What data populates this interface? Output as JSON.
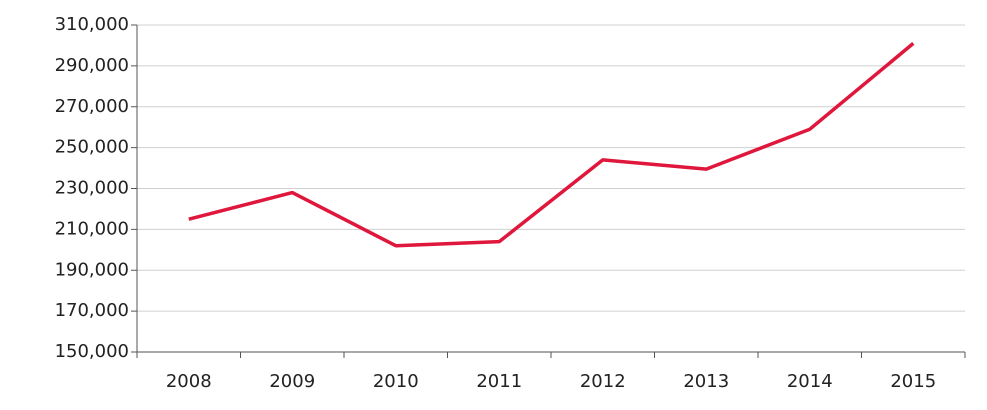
{
  "chart_data": {
    "type": "line",
    "categories": [
      "2008",
      "2009",
      "2010",
      "2011",
      "2012",
      "2013",
      "2014",
      "2015"
    ],
    "series": [
      {
        "color": "#e0173c",
        "values": [
          215000,
          228000,
          202000,
          204000,
          244000,
          239500,
          259000,
          301000
        ]
      }
    ],
    "ylim": [
      150000,
      310000
    ],
    "yticks": [
      {
        "value": 150000,
        "label": "150,000"
      },
      {
        "value": 170000,
        "label": "170,000"
      },
      {
        "value": 190000,
        "label": "190,000"
      },
      {
        "value": 210000,
        "label": "210,000"
      },
      {
        "value": 230000,
        "label": "230,000"
      },
      {
        "value": 250000,
        "label": "250,000"
      },
      {
        "value": 270000,
        "label": "270,000"
      },
      {
        "value": 290000,
        "label": "290,000"
      },
      {
        "value": 310000,
        "label": "310,000"
      }
    ],
    "grid": true
  }
}
